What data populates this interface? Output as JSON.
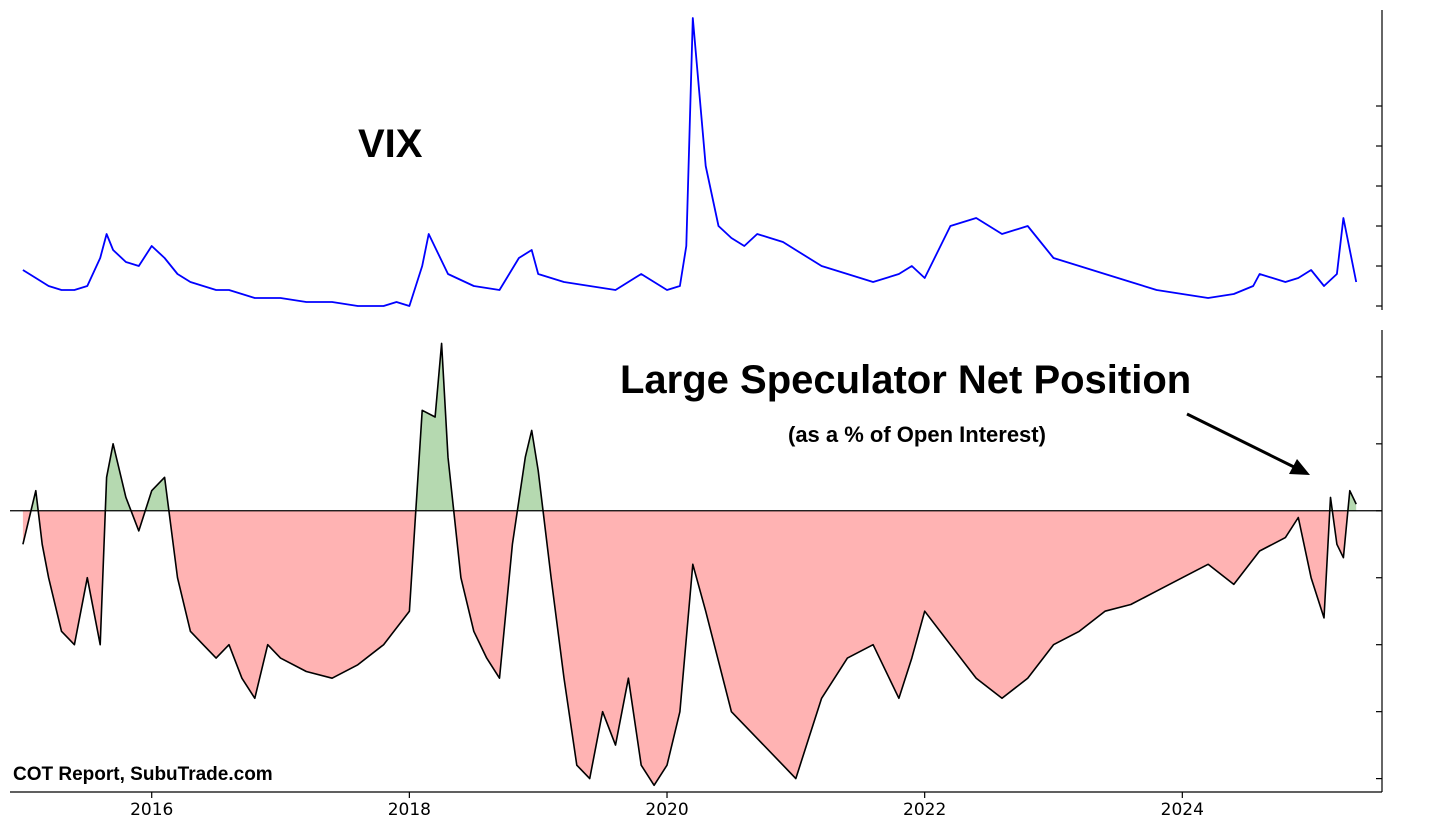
{
  "chart_data": [
    {
      "type": "line",
      "title": "VIX",
      "color": "#0000ff",
      "x_unit": "year",
      "xlim": [
        2014.9,
        2025.55
      ],
      "ylim": [
        9,
        84
      ],
      "x": [
        2015.0,
        2015.1,
        2015.2,
        2015.3,
        2015.4,
        2015.5,
        2015.6,
        2015.65,
        2015.7,
        2015.8,
        2015.9,
        2016.0,
        2016.1,
        2016.2,
        2016.3,
        2016.4,
        2016.5,
        2016.6,
        2016.7,
        2016.8,
        2016.9,
        2017.0,
        2017.2,
        2017.4,
        2017.6,
        2017.8,
        2017.9,
        2018.0,
        2018.1,
        2018.15,
        2018.3,
        2018.5,
        2018.7,
        2018.85,
        2018.95,
        2019.0,
        2019.2,
        2019.4,
        2019.6,
        2019.8,
        2020.0,
        2020.1,
        2020.15,
        2020.2,
        2020.3,
        2020.4,
        2020.5,
        2020.6,
        2020.7,
        2020.8,
        2020.9,
        2021.0,
        2021.1,
        2021.2,
        2021.4,
        2021.6,
        2021.8,
        2021.9,
        2022.0,
        2022.2,
        2022.4,
        2022.6,
        2022.8,
        2022.9,
        2023.0,
        2023.2,
        2023.4,
        2023.6,
        2023.8,
        2024.0,
        2024.2,
        2024.4,
        2024.55,
        2024.6,
        2024.8,
        2024.9,
        2025.0,
        2025.1,
        2025.2,
        2025.25,
        2025.35
      ],
      "y": [
        19,
        17,
        15,
        14,
        14,
        15,
        22,
        28,
        24,
        21,
        20,
        25,
        22,
        18,
        16,
        15,
        14,
        14,
        13,
        12,
        12,
        12,
        11,
        11,
        10,
        10,
        11,
        10,
        20,
        28,
        18,
        15,
        14,
        22,
        24,
        18,
        16,
        15,
        14,
        18,
        14,
        15,
        25,
        82,
        45,
        30,
        27,
        25,
        28,
        27,
        26,
        24,
        22,
        20,
        18,
        16,
        18,
        20,
        17,
        30,
        32,
        28,
        30,
        26,
        22,
        20,
        18,
        16,
        14,
        13,
        12,
        13,
        15,
        18,
        16,
        17,
        19,
        15,
        18,
        32,
        16
      ],
      "ticks_shown": true,
      "tick_labels_shown": false
    },
    {
      "type": "area",
      "title": "Large Speculator Net Position",
      "subtitle": "(as a % of Open Interest)",
      "annotation": "arrow pointing to latest value",
      "baseline": 0,
      "colors": {
        "line": "#000000",
        "above": "#b5d9b0",
        "below": "#ffb3b3"
      },
      "x_unit": "year",
      "xlim": [
        2014.9,
        2025.55
      ],
      "ylim": [
        -42,
        27
      ],
      "x": [
        2015.0,
        2015.1,
        2015.15,
        2015.2,
        2015.3,
        2015.4,
        2015.5,
        2015.6,
        2015.65,
        2015.7,
        2015.8,
        2015.9,
        2016.0,
        2016.1,
        2016.2,
        2016.3,
        2016.4,
        2016.5,
        2016.6,
        2016.7,
        2016.8,
        2016.9,
        2017.0,
        2017.2,
        2017.4,
        2017.6,
        2017.8,
        2018.0,
        2018.1,
        2018.2,
        2018.25,
        2018.3,
        2018.4,
        2018.5,
        2018.6,
        2018.7,
        2018.8,
        2018.9,
        2018.95,
        2019.0,
        2019.1,
        2019.2,
        2019.3,
        2019.4,
        2019.5,
        2019.6,
        2019.7,
        2019.8,
        2019.9,
        2020.0,
        2020.1,
        2020.2,
        2020.3,
        2020.5,
        2020.7,
        2020.9,
        2021.0,
        2021.1,
        2021.2,
        2021.4,
        2021.6,
        2021.8,
        2021.9,
        2022.0,
        2022.2,
        2022.4,
        2022.6,
        2022.8,
        2023.0,
        2023.2,
        2023.4,
        2023.6,
        2023.8,
        2024.0,
        2024.2,
        2024.4,
        2024.6,
        2024.8,
        2024.9,
        2025.0,
        2025.1,
        2025.15,
        2025.2,
        2025.25,
        2025.3,
        2025.35
      ],
      "y": [
        -5,
        3,
        -5,
        -10,
        -18,
        -20,
        -10,
        -20,
        5,
        10,
        2,
        -3,
        3,
        5,
        -10,
        -18,
        -20,
        -22,
        -20,
        -25,
        -28,
        -20,
        -22,
        -24,
        -25,
        -23,
        -20,
        -15,
        15,
        14,
        25,
        8,
        -10,
        -18,
        -22,
        -25,
        -5,
        8,
        12,
        6,
        -10,
        -25,
        -38,
        -40,
        -30,
        -35,
        -25,
        -38,
        -41,
        -38,
        -30,
        -8,
        -15,
        -30,
        -34,
        -38,
        -40,
        -34,
        -28,
        -22,
        -20,
        -28,
        -22,
        -15,
        -20,
        -25,
        -28,
        -25,
        -20,
        -18,
        -15,
        -14,
        -12,
        -10,
        -8,
        -11,
        -6,
        -4,
        -1,
        -10,
        -16,
        2,
        -5,
        -7,
        3,
        1
      ],
      "ticks_shown": true,
      "tick_labels_shown": false
    }
  ],
  "shared_x_axis": {
    "ticks": [
      2016,
      2018,
      2020,
      2022,
      2024
    ],
    "tick_labels": [
      "2016",
      "2018",
      "2020",
      "2022",
      "2024"
    ]
  },
  "source_note": "COT Report, SubuTrade.com"
}
